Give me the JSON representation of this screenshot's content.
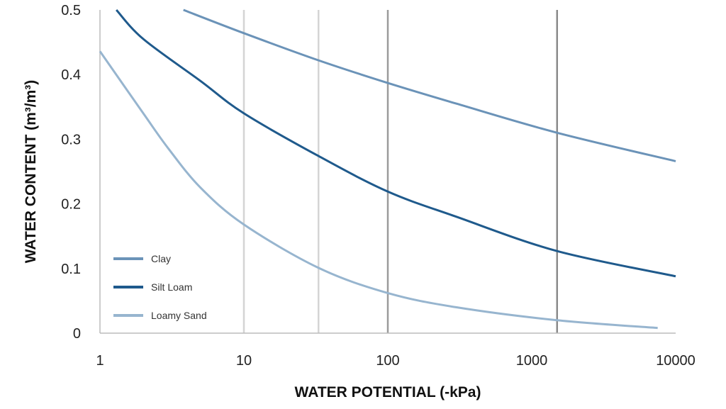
{
  "chart_data": {
    "type": "line",
    "title": "",
    "xlabel": "WATER POTENTIAL (-kPa)",
    "ylabel": "WATER CONTENT (m³/m³)",
    "x_scale": "log",
    "xlim": [
      1,
      10000
    ],
    "ylim": [
      0,
      0.5
    ],
    "x_ticks": [
      "1",
      "10",
      "100",
      "1000",
      "10000"
    ],
    "y_ticks": [
      "0",
      "0.1",
      "0.2",
      "0.3",
      "0.4",
      "0.5"
    ],
    "reference_lines_x": [
      {
        "x": 10,
        "color": "#d4d4d4"
      },
      {
        "x": 33,
        "color": "#d4d4d4"
      },
      {
        "x": 100,
        "color": "#9a9a9a"
      },
      {
        "x": 1500,
        "color": "#8a8a8a"
      }
    ],
    "legend_position": "bottom-left",
    "series": [
      {
        "name": "Clay",
        "color": "#6b93b8",
        "points": [
          [
            3.8,
            0.5
          ],
          [
            10,
            0.464
          ],
          [
            33,
            0.422
          ],
          [
            100,
            0.387
          ],
          [
            300,
            0.355
          ],
          [
            1500,
            0.31
          ],
          [
            10000,
            0.266
          ]
        ]
      },
      {
        "name": "Silt Loam",
        "color": "#1f5a8c",
        "points": [
          [
            1.3,
            0.5
          ],
          [
            2,
            0.455
          ],
          [
            5,
            0.39
          ],
          [
            10,
            0.34
          ],
          [
            33,
            0.274
          ],
          [
            100,
            0.219
          ],
          [
            300,
            0.18
          ],
          [
            1500,
            0.127
          ],
          [
            10000,
            0.088
          ]
        ]
      },
      {
        "name": "Loamy Sand",
        "color": "#97b5cf",
        "points": [
          [
            1,
            0.436
          ],
          [
            2,
            0.34
          ],
          [
            3,
            0.285
          ],
          [
            5,
            0.225
          ],
          [
            10,
            0.168
          ],
          [
            33,
            0.101
          ],
          [
            100,
            0.062
          ],
          [
            300,
            0.04
          ],
          [
            1500,
            0.02
          ],
          [
            7500,
            0.008
          ]
        ]
      }
    ]
  }
}
